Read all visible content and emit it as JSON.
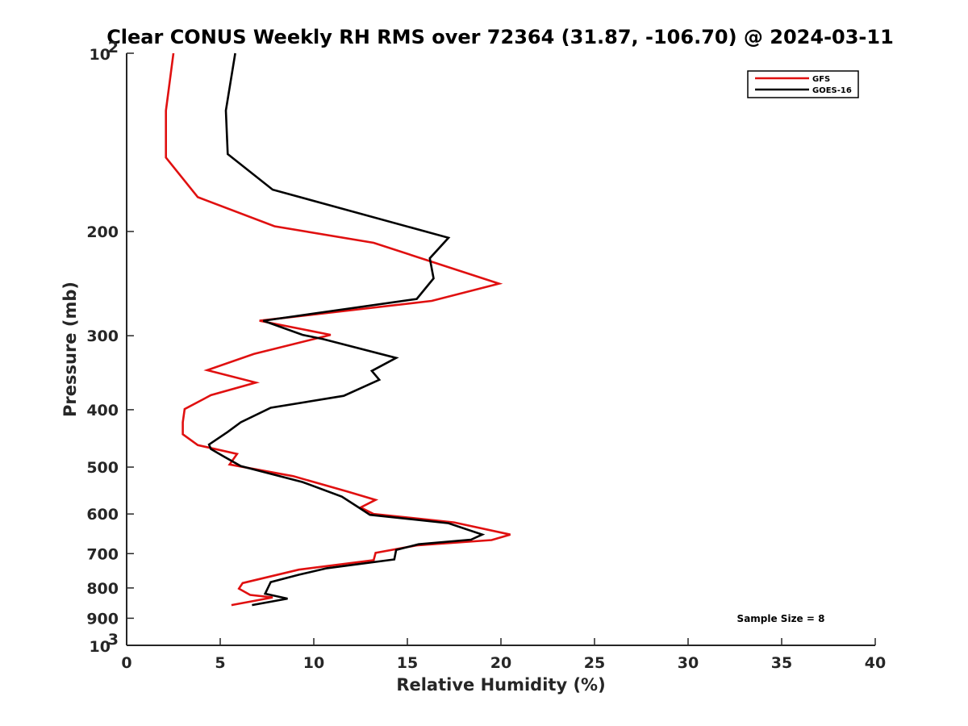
{
  "chart_data": {
    "type": "line",
    "title": "Clear CONUS Weekly RH RMS over 72364 (31.87, -106.70) @ 2024-03-11",
    "xlabel": "Relative Humidity (%)",
    "ylabel": "Pressure (mb)",
    "xlim": [
      0,
      40
    ],
    "ylim": [
      100,
      1000
    ],
    "y_scale": "log",
    "y_reversed": true,
    "x_ticks": [
      "0",
      "5",
      "10",
      "15",
      "20",
      "25",
      "30",
      "35",
      "40"
    ],
    "y_ticks": [
      {
        "value": 100,
        "base": "10",
        "exp": "2"
      },
      {
        "value": 200,
        "label": "200"
      },
      {
        "value": 300,
        "label": "300"
      },
      {
        "value": 400,
        "label": "400"
      },
      {
        "value": 500,
        "label": "500"
      },
      {
        "value": 600,
        "label": "600"
      },
      {
        "value": 700,
        "label": "700"
      },
      {
        "value": 800,
        "label": "800"
      },
      {
        "value": 900,
        "label": "900"
      },
      {
        "value": 1000,
        "base": "10",
        "exp": "3"
      }
    ],
    "grid": false,
    "legend_position": "top-right",
    "annotation": "Sample Size = 8",
    "series": [
      {
        "name": "GFS",
        "color": "#e01010",
        "points": [
          [
            2.5,
            100
          ],
          [
            2.1,
            125
          ],
          [
            2.1,
            150
          ],
          [
            3.8,
            175
          ],
          [
            7.9,
            196
          ],
          [
            13.2,
            209
          ],
          [
            19.9,
            245
          ],
          [
            16.3,
            262
          ],
          [
            7.1,
            283
          ],
          [
            10.9,
            299
          ],
          [
            6.8,
            322
          ],
          [
            4.3,
            343
          ],
          [
            6.9,
            360
          ],
          [
            4.5,
            378
          ],
          [
            3.1,
            399
          ],
          [
            3.0,
            420
          ],
          [
            3.0,
            440
          ],
          [
            3.8,
            459
          ],
          [
            5.9,
            475
          ],
          [
            5.5,
            495
          ],
          [
            8.9,
            518
          ],
          [
            11.8,
            550
          ],
          [
            13.3,
            568
          ],
          [
            12.5,
            585
          ],
          [
            13.2,
            600
          ],
          [
            17.5,
            620
          ],
          [
            20.5,
            650
          ],
          [
            19.5,
            664
          ],
          [
            15.5,
            678
          ],
          [
            13.3,
            698
          ],
          [
            13.2,
            718
          ],
          [
            9.2,
            745
          ],
          [
            6.2,
            785
          ],
          [
            6.0,
            802
          ],
          [
            6.6,
            822
          ],
          [
            7.8,
            830
          ],
          [
            5.6,
            855
          ]
        ]
      },
      {
        "name": "GOES-16",
        "color": "#000000",
        "points": [
          [
            5.8,
            100
          ],
          [
            5.3,
            125
          ],
          [
            5.4,
            148
          ],
          [
            7.8,
            170
          ],
          [
            17.2,
            205
          ],
          [
            16.2,
            222
          ],
          [
            16.4,
            240
          ],
          [
            15.5,
            260
          ],
          [
            7.3,
            283
          ],
          [
            9.4,
            299
          ],
          [
            10.5,
            304
          ],
          [
            14.4,
            327
          ],
          [
            13.1,
            344
          ],
          [
            13.5,
            356
          ],
          [
            11.6,
            379
          ],
          [
            7.7,
            397
          ],
          [
            6.1,
            420
          ],
          [
            5.4,
            436
          ],
          [
            4.4,
            458
          ],
          [
            4.5,
            466
          ],
          [
            5.2,
            480
          ],
          [
            6.1,
            498
          ],
          [
            9.4,
            530
          ],
          [
            11.5,
            561
          ],
          [
            12.4,
            585
          ],
          [
            13.0,
            602
          ],
          [
            17.2,
            622
          ],
          [
            19.0,
            650
          ],
          [
            18.4,
            663
          ],
          [
            15.6,
            675
          ],
          [
            14.4,
            690
          ],
          [
            14.3,
            716
          ],
          [
            10.7,
            741
          ],
          [
            9.2,
            760
          ],
          [
            7.7,
            782
          ],
          [
            7.4,
            818
          ],
          [
            8.6,
            834
          ],
          [
            6.7,
            855
          ]
        ]
      }
    ]
  }
}
